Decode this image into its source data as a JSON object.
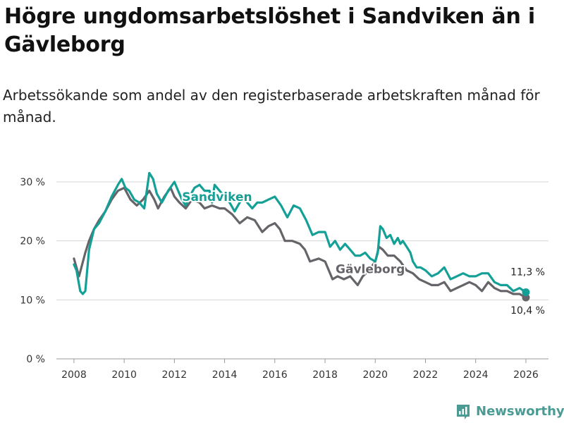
{
  "header": {
    "title": "Högre ungdomsarbetslöshet i Sandviken än i Gävleborg",
    "subtitle": "Arbetssökande som andel av den registerbaserade arbetskraften månad för månad."
  },
  "brand": {
    "name": "Newsworthy",
    "color": "#4a9b94"
  },
  "chart_data": {
    "type": "line",
    "title": "Högre ungdomsarbetslöshet i Sandviken än i Gävleborg",
    "subtitle": "Arbetssökande som andel av den registerbaserade arbetskraften månad för månad.",
    "xlabel": "",
    "ylabel": "",
    "xlim": [
      2007.3,
      2026.9
    ],
    "ylim": [
      0,
      30
    ],
    "y_ticks": [
      0,
      10,
      20,
      30
    ],
    "y_tick_labels": [
      "0 %",
      "10 %",
      "20 %",
      "30 %"
    ],
    "x_ticks": [
      2008,
      2010,
      2012,
      2014,
      2016,
      2018,
      2020,
      2022,
      2024,
      2026
    ],
    "x_tick_labels": [
      "2008",
      "2010",
      "2012",
      "2014",
      "2016",
      "2018",
      "2020",
      "2022",
      "2024",
      "2026"
    ],
    "grid": true,
    "series": [
      {
        "name": "Gävleborg",
        "label": "Gävleborg",
        "color": "#666369",
        "end_label": "10,4 %",
        "x": [
          2008.0,
          2008.2,
          2008.45,
          2008.6,
          2008.8,
          2009.0,
          2009.25,
          2009.5,
          2009.75,
          2010.0,
          2010.25,
          2010.5,
          2010.75,
          2011.0,
          2011.2,
          2011.35,
          2011.6,
          2011.85,
          2012.0,
          2012.2,
          2012.45,
          2012.7,
          2013.0,
          2013.2,
          2013.5,
          2013.8,
          2014.0,
          2014.3,
          2014.6,
          2014.9,
          2015.2,
          2015.5,
          2015.75,
          2016.0,
          2016.2,
          2016.4,
          2016.7,
          2017.0,
          2017.2,
          2017.4,
          2017.75,
          2018.0,
          2018.3,
          2018.5,
          2018.75,
          2019.0,
          2019.3,
          2019.5,
          2019.75,
          2020.0,
          2020.15,
          2020.3,
          2020.5,
          2020.75,
          2021.0,
          2021.25,
          2021.5,
          2021.75,
          2022.0,
          2022.25,
          2022.5,
          2022.75,
          2023.0,
          2023.25,
          2023.5,
          2023.75,
          2024.0,
          2024.25,
          2024.5,
          2024.75,
          2025.0,
          2025.25,
          2025.5,
          2025.75,
          2026.0
        ],
        "values": [
          17.0,
          14.0,
          18.0,
          20.0,
          22.0,
          23.5,
          25.0,
          27.0,
          28.5,
          29.0,
          27.0,
          26.0,
          27.0,
          28.5,
          27.0,
          25.5,
          27.5,
          29.0,
          27.5,
          26.5,
          25.5,
          27.0,
          26.5,
          25.5,
          26.0,
          25.5,
          25.5,
          24.5,
          23.0,
          24.0,
          23.5,
          21.5,
          22.5,
          23.0,
          22.0,
          20.0,
          20.0,
          19.5,
          18.5,
          16.5,
          17.0,
          16.5,
          13.5,
          14.0,
          13.5,
          14.0,
          12.5,
          14.0,
          15.0,
          16.5,
          19.0,
          18.5,
          17.5,
          17.5,
          16.5,
          15.0,
          14.5,
          13.5,
          13.0,
          12.5,
          12.5,
          13.0,
          11.5,
          12.0,
          12.5,
          13.0,
          12.5,
          11.5,
          13.0,
          12.0,
          11.5,
          11.5,
          11.0,
          11.0,
          10.4
        ]
      },
      {
        "name": "Sandviken",
        "label": "Sandviken",
        "color": "#14a096",
        "end_label": "11,3 %",
        "x": [
          2008.0,
          2008.1,
          2008.25,
          2008.35,
          2008.45,
          2008.6,
          2008.8,
          2009.0,
          2009.25,
          2009.5,
          2009.75,
          2009.9,
          2010.05,
          2010.2,
          2010.4,
          2010.6,
          2010.8,
          2011.0,
          2011.15,
          2011.3,
          2011.5,
          2011.75,
          2012.0,
          2012.15,
          2012.3,
          2012.45,
          2012.6,
          2012.8,
          2013.0,
          2013.2,
          2013.4,
          2013.5,
          2013.6,
          2013.8,
          2014.0,
          2014.2,
          2014.4,
          2014.6,
          2014.75,
          2014.9,
          2015.1,
          2015.3,
          2015.5,
          2015.75,
          2016.0,
          2016.25,
          2016.5,
          2016.75,
          2017.0,
          2017.25,
          2017.5,
          2017.75,
          2018.0,
          2018.2,
          2018.4,
          2018.6,
          2018.8,
          2019.0,
          2019.2,
          2019.4,
          2019.6,
          2019.8,
          2020.0,
          2020.1,
          2020.2,
          2020.3,
          2020.45,
          2020.6,
          2020.75,
          2020.9,
          2021.0,
          2021.1,
          2021.25,
          2021.4,
          2021.5,
          2021.65,
          2021.8,
          2022.0,
          2022.25,
          2022.5,
          2022.75,
          2023.0,
          2023.25,
          2023.5,
          2023.75,
          2024.0,
          2024.25,
          2024.5,
          2024.75,
          2025.0,
          2025.25,
          2025.5,
          2025.75,
          2026.0
        ],
        "values": [
          16.0,
          15.0,
          11.5,
          11.0,
          11.5,
          18.5,
          22.0,
          23.0,
          25.0,
          27.5,
          29.5,
          30.5,
          29.0,
          28.5,
          27.0,
          26.5,
          25.5,
          31.5,
          30.5,
          28.0,
          26.5,
          28.5,
          30.0,
          28.5,
          27.0,
          26.0,
          27.5,
          29.0,
          29.5,
          28.5,
          28.5,
          26.5,
          29.5,
          28.5,
          27.5,
          26.5,
          25.0,
          26.5,
          27.5,
          26.5,
          25.5,
          26.5,
          26.5,
          27.0,
          27.5,
          26.0,
          24.0,
          26.0,
          25.5,
          23.5,
          21.0,
          21.5,
          21.5,
          19.0,
          20.0,
          18.5,
          19.5,
          18.5,
          17.5,
          17.5,
          18.0,
          17.0,
          16.5,
          18.0,
          22.5,
          22.0,
          20.5,
          21.0,
          19.5,
          20.5,
          19.5,
          20.0,
          19.0,
          18.0,
          16.5,
          15.5,
          15.5,
          15.0,
          14.0,
          14.5,
          15.5,
          13.5,
          14.0,
          14.5,
          14.0,
          14.0,
          14.5,
          14.5,
          13.0,
          12.5,
          12.5,
          11.5,
          12.0,
          11.3
        ]
      }
    ]
  }
}
